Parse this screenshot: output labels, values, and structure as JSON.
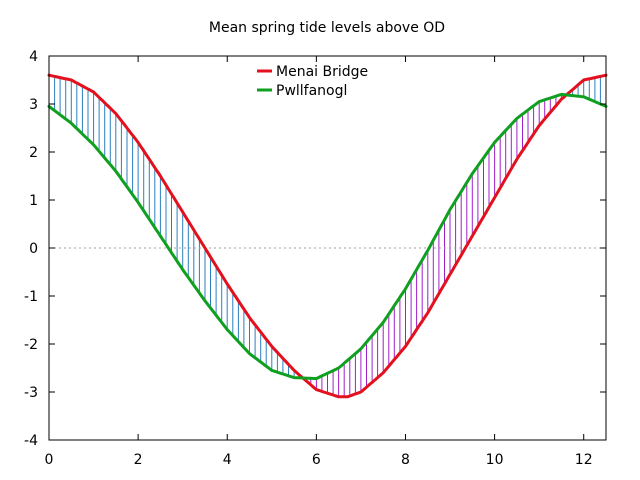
{
  "chart_data": {
    "type": "line",
    "title": "Mean spring tide levels above OD",
    "xlabel": "",
    "ylabel": "",
    "xlim": [
      0,
      12.5
    ],
    "ylim": [
      -4,
      4
    ],
    "x_ticks": [
      "0",
      "2",
      "4",
      "6",
      "8",
      "10",
      "12"
    ],
    "y_ticks": [
      "4",
      "3",
      "2",
      "1",
      "0",
      "-1",
      "-2",
      "-3",
      "-4"
    ],
    "zero_line": true,
    "legend_position": "top-center",
    "fill_colors": {
      "first_higher": "#2a7fc0",
      "second_higher": "#a020c8"
    },
    "series": [
      {
        "name": "Menai Bridge",
        "color": "#e3101e",
        "x": [
          0,
          0.5,
          1,
          1.5,
          2,
          2.5,
          3,
          3.5,
          4,
          4.5,
          5,
          5.5,
          6,
          6.5,
          6.7,
          7,
          7.5,
          8,
          8.5,
          9,
          9.5,
          10,
          10.5,
          11,
          11.5,
          12,
          12.5
        ],
        "y": [
          3.6,
          3.5,
          3.25,
          2.8,
          2.2,
          1.5,
          0.75,
          0.0,
          -0.75,
          -1.45,
          -2.05,
          -2.55,
          -2.95,
          -3.1,
          -3.1,
          -3.0,
          -2.6,
          -2.05,
          -1.35,
          -0.55,
          0.25,
          1.05,
          1.85,
          2.55,
          3.1,
          3.5,
          3.6
        ]
      },
      {
        "name": "Pwllfanogl",
        "color": "#10a020",
        "x": [
          0,
          0.5,
          1,
          1.5,
          2,
          2.5,
          3,
          3.5,
          4,
          4.5,
          5,
          5.5,
          6,
          6.5,
          7,
          7.5,
          8,
          8.5,
          9,
          9.5,
          10,
          10.5,
          11,
          11.5,
          12,
          12.5
        ],
        "y": [
          2.95,
          2.6,
          2.15,
          1.6,
          0.95,
          0.25,
          -0.45,
          -1.1,
          -1.7,
          -2.2,
          -2.55,
          -2.7,
          -2.72,
          -2.5,
          -2.1,
          -1.55,
          -0.85,
          -0.05,
          0.8,
          1.55,
          2.2,
          2.7,
          3.05,
          3.2,
          3.15,
          2.95
        ]
      }
    ]
  }
}
